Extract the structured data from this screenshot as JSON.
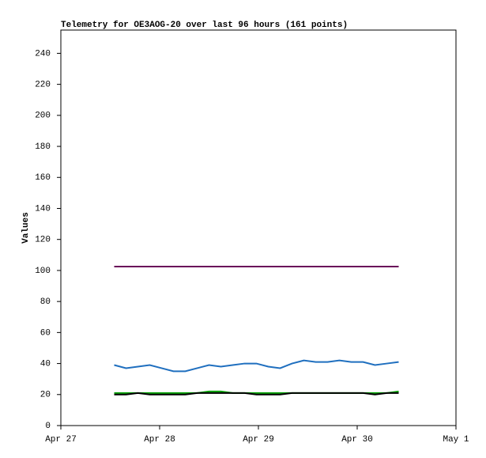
{
  "chart_data": {
    "type": "line",
    "title": "Telemetry for OE3AOG-20 over last 96 hours (161 points)",
    "y_label": "Values",
    "x": [
      0.54,
      0.66,
      0.78,
      0.9,
      1.02,
      1.14,
      1.26,
      1.38,
      1.5,
      1.62,
      1.74,
      1.86,
      1.98,
      2.1,
      2.22,
      2.34,
      2.46,
      2.58,
      2.7,
      2.82,
      2.94,
      3.06,
      3.18,
      3.3,
      3.42
    ],
    "xlim": [
      0,
      4
    ],
    "xticks": [
      {
        "value": 0,
        "label": "Apr 27"
      },
      {
        "value": 1,
        "label": "Apr 28"
      },
      {
        "value": 2,
        "label": "Apr 29"
      },
      {
        "value": 3,
        "label": "Apr 30"
      },
      {
        "value": 4,
        "label": "May 1"
      }
    ],
    "ylim": [
      0,
      255
    ],
    "yticks": [
      0,
      20,
      40,
      60,
      80,
      100,
      120,
      140,
      160,
      180,
      200,
      220,
      240
    ],
    "series": [
      {
        "color": "#6a0a5a",
        "values": [
          102.5,
          102.5,
          102.5,
          102.5,
          102.5,
          102.5,
          102.5,
          102.5,
          102.5,
          102.5,
          102.5,
          102.5,
          102.5,
          102.5,
          102.5,
          102.5,
          102.5,
          102.5,
          102.5,
          102.5,
          102.5,
          102.5,
          102.5,
          102.5,
          102.5
        ]
      },
      {
        "color": "#1f6fbf",
        "values": [
          39,
          37,
          38,
          39,
          37,
          35,
          35,
          37,
          39,
          38,
          39,
          40,
          40,
          38,
          37,
          40,
          42,
          41,
          41,
          42,
          41,
          41,
          39,
          40,
          41
        ]
      },
      {
        "color": "#00a000",
        "values": [
          21,
          21,
          21,
          21,
          21,
          21,
          21,
          21,
          22,
          22,
          21,
          21,
          21,
          21,
          21,
          21,
          21,
          21,
          21,
          21,
          21,
          21,
          21,
          21,
          22
        ]
      },
      {
        "color": "#000000",
        "values": [
          20,
          20,
          21,
          20,
          20,
          20,
          20,
          21,
          21,
          21,
          21,
          21,
          20,
          20,
          20,
          21,
          21,
          21,
          21,
          21,
          21,
          21,
          20,
          21,
          21
        ]
      }
    ]
  }
}
